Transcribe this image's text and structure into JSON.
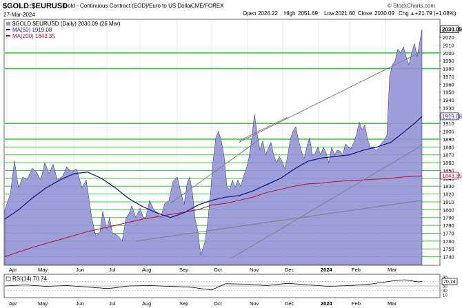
{
  "header": {
    "symbol": "$GOLD:$EURUSD",
    "description": "Gold - Continuous Contract (EOD)/Euro to US Dollar",
    "exchange": "CME/FOREX",
    "date": "27-Mar-2024",
    "watermark": "© StockCharts.com",
    "open_label": "Open",
    "open": "2026.22",
    "high_label": "High",
    "high": "2051.69",
    "low_label": "Low",
    "low": "2021.60",
    "close_label": "Close",
    "close": "2030.09",
    "chg_label": "Chg",
    "chg": "+21.79 (+1.08%)",
    "chg_arrow": "▲"
  },
  "legend": {
    "main": "$GOLD:$EURUSD (Daily) 2030.09 (26 Mar)",
    "ma50": "MA(50) 1919.08",
    "ma200": "MA(200) 1843.35"
  },
  "colors": {
    "area": "#9393d6",
    "area_stroke": "#2d2d7a",
    "ma50": "#1a1a8c",
    "ma200": "#b0103a",
    "hline": "#33cc33",
    "trend": "#808080",
    "rsi": "#000000"
  },
  "price_labels": {
    "last": "2030.09",
    "ma50": "1919.08",
    "ma200": "1843.35"
  },
  "rsi": {
    "label": "RSI(14) 70.74",
    "value_label": "70.74",
    "ticks": [
      "90",
      "70",
      "50",
      "30",
      "10"
    ]
  },
  "chart_data": {
    "type": "area",
    "ylim": [
      1730,
      2042
    ],
    "y_ticks": [
      1740,
      1750,
      1760,
      1770,
      1780,
      1790,
      1800,
      1810,
      1820,
      1830,
      1840,
      1850,
      1860,
      1870,
      1880,
      1890,
      1900,
      1910,
      1920,
      1930,
      1940,
      1950,
      1960,
      1970,
      1980,
      1990,
      2000,
      2010,
      2020
    ],
    "x_labels": [
      "Apr",
      "May",
      "Jun",
      "Jul",
      "Aug",
      "Sep",
      "Oct",
      "Nov",
      "Dec",
      "2024",
      "Feb",
      "Mar"
    ],
    "x_label_pos": [
      3,
      45,
      100,
      148,
      196,
      250,
      300,
      352,
      403,
      455,
      500,
      552
    ],
    "horizontal_lines": [
      1740,
      1750,
      1760,
      1770,
      1780,
      1790,
      1800,
      1810,
      1820,
      1830,
      1840,
      1850,
      1860,
      1870,
      1880,
      1890,
      1910,
      1980,
      2000
    ],
    "price": [
      [
        0,
        1800
      ],
      [
        8,
        1820
      ],
      [
        14,
        1862
      ],
      [
        20,
        1828
      ],
      [
        26,
        1842
      ],
      [
        32,
        1838
      ],
      [
        40,
        1853
      ],
      [
        46,
        1848
      ],
      [
        52,
        1838
      ],
      [
        58,
        1860
      ],
      [
        64,
        1846
      ],
      [
        70,
        1858
      ],
      [
        76,
        1838
      ],
      [
        84,
        1843
      ],
      [
        90,
        1855
      ],
      [
        96,
        1848
      ],
      [
        104,
        1852
      ],
      [
        112,
        1828
      ],
      [
        118,
        1838
      ],
      [
        126,
        1790
      ],
      [
        132,
        1766
      ],
      [
        138,
        1772
      ],
      [
        142,
        1798
      ],
      [
        148,
        1775
      ],
      [
        152,
        1790
      ],
      [
        156,
        1770
      ],
      [
        162,
        1768
      ],
      [
        166,
        1765
      ],
      [
        170,
        1760
      ],
      [
        176,
        1790
      ],
      [
        180,
        1795
      ],
      [
        184,
        1805
      ],
      [
        190,
        1790
      ],
      [
        196,
        1802
      ],
      [
        200,
        1792
      ],
      [
        204,
        1788
      ],
      [
        210,
        1812
      ],
      [
        216,
        1800
      ],
      [
        222,
        1796
      ],
      [
        226,
        1790
      ],
      [
        232,
        1808
      ],
      [
        238,
        1812
      ],
      [
        244,
        1836
      ],
      [
        250,
        1842
      ],
      [
        256,
        1820
      ],
      [
        260,
        1806
      ],
      [
        264,
        1832
      ],
      [
        268,
        1842
      ],
      [
        272,
        1822
      ],
      [
        276,
        1788
      ],
      [
        280,
        1772
      ],
      [
        284,
        1742
      ],
      [
        290,
        1758
      ],
      [
        294,
        1782
      ],
      [
        298,
        1818
      ],
      [
        302,
        1862
      ],
      [
        306,
        1892
      ],
      [
        310,
        1900
      ],
      [
        314,
        1888
      ],
      [
        318,
        1868
      ],
      [
        322,
        1830
      ],
      [
        326,
        1825
      ],
      [
        330,
        1838
      ],
      [
        334,
        1828
      ],
      [
        338,
        1838
      ],
      [
        342,
        1830
      ],
      [
        346,
        1842
      ],
      [
        350,
        1852
      ],
      [
        354,
        1866
      ],
      [
        358,
        1890
      ],
      [
        362,
        1922
      ],
      [
        366,
        1896
      ],
      [
        370,
        1876
      ],
      [
        374,
        1888
      ],
      [
        378,
        1870
      ],
      [
        382,
        1878
      ],
      [
        386,
        1886
      ],
      [
        390,
        1870
      ],
      [
        394,
        1860
      ],
      [
        398,
        1868
      ],
      [
        402,
        1862
      ],
      [
        406,
        1852
      ],
      [
        410,
        1868
      ],
      [
        414,
        1890
      ],
      [
        418,
        1900
      ],
      [
        422,
        1906
      ],
      [
        426,
        1888
      ],
      [
        430,
        1875
      ],
      [
        434,
        1865
      ],
      [
        438,
        1880
      ],
      [
        442,
        1892
      ],
      [
        446,
        1870
      ],
      [
        450,
        1872
      ],
      [
        454,
        1880
      ],
      [
        458,
        1870
      ],
      [
        462,
        1880
      ],
      [
        466,
        1872
      ],
      [
        470,
        1860
      ],
      [
        474,
        1880
      ],
      [
        478,
        1870
      ],
      [
        482,
        1876
      ],
      [
        486,
        1875
      ],
      [
        490,
        1870
      ],
      [
        494,
        1884
      ],
      [
        498,
        1880
      ],
      [
        502,
        1878
      ],
      [
        506,
        1886
      ],
      [
        510,
        1896
      ],
      [
        514,
        1912
      ],
      [
        518,
        1902
      ],
      [
        522,
        1908
      ],
      [
        526,
        1890
      ],
      [
        530,
        1880
      ],
      [
        534,
        1880
      ],
      [
        538,
        1876
      ],
      [
        542,
        1878
      ],
      [
        546,
        1885
      ],
      [
        550,
        1888
      ],
      [
        554,
        1895
      ],
      [
        556,
        1930
      ],
      [
        558,
        1970
      ],
      [
        562,
        1985
      ],
      [
        566,
        1990
      ],
      [
        570,
        2005
      ],
      [
        574,
        2000
      ],
      [
        578,
        2008
      ],
      [
        582,
        1995
      ],
      [
        586,
        1985
      ],
      [
        590,
        2000
      ],
      [
        594,
        2012
      ],
      [
        598,
        1995
      ],
      [
        602,
        2015
      ],
      [
        605,
        2030
      ]
    ],
    "ma50": [
      [
        0,
        1788
      ],
      [
        20,
        1800
      ],
      [
        40,
        1815
      ],
      [
        60,
        1828
      ],
      [
        80,
        1838
      ],
      [
        100,
        1846
      ],
      [
        120,
        1848
      ],
      [
        140,
        1840
      ],
      [
        160,
        1828
      ],
      [
        180,
        1814
      ],
      [
        200,
        1804
      ],
      [
        220,
        1796
      ],
      [
        240,
        1790
      ],
      [
        260,
        1796
      ],
      [
        280,
        1806
      ],
      [
        300,
        1812
      ],
      [
        320,
        1816
      ],
      [
        340,
        1818
      ],
      [
        360,
        1824
      ],
      [
        380,
        1832
      ],
      [
        400,
        1840
      ],
      [
        420,
        1852
      ],
      [
        440,
        1862
      ],
      [
        460,
        1866
      ],
      [
        480,
        1868
      ],
      [
        500,
        1870
      ],
      [
        520,
        1876
      ],
      [
        540,
        1880
      ],
      [
        560,
        1886
      ],
      [
        580,
        1900
      ],
      [
        594,
        1910
      ],
      [
        605,
        1919
      ]
    ],
    "ma200": [
      [
        0,
        1740
      ],
      [
        40,
        1752
      ],
      [
        80,
        1762
      ],
      [
        120,
        1772
      ],
      [
        160,
        1780
      ],
      [
        200,
        1788
      ],
      [
        240,
        1794
      ],
      [
        280,
        1800
      ],
      [
        300,
        1806
      ],
      [
        320,
        1808
      ],
      [
        340,
        1812
      ],
      [
        360,
        1816
      ],
      [
        380,
        1822
      ],
      [
        400,
        1826
      ],
      [
        420,
        1830
      ],
      [
        440,
        1833
      ],
      [
        460,
        1834
      ],
      [
        480,
        1836
      ],
      [
        500,
        1837
      ],
      [
        520,
        1838
      ],
      [
        540,
        1839
      ],
      [
        560,
        1840
      ],
      [
        580,
        1842
      ],
      [
        605,
        1843
      ]
    ],
    "trendlines": [
      [
        [
          240,
          1808
        ],
        [
          370,
          1890
        ]
      ],
      [
        [
          328,
          1738
        ],
        [
          605,
          1882
        ]
      ],
      [
        [
          190,
          1760
        ],
        [
          605,
          1812
        ]
      ],
      [
        [
          340,
          1886
        ],
        [
          605,
          2002
        ]
      ],
      [
        [
          340,
          1888
        ],
        [
          410,
          1918
        ]
      ]
    ],
    "rsi_values": [
      [
        0,
        50
      ],
      [
        30,
        55
      ],
      [
        60,
        48
      ],
      [
        90,
        52
      ],
      [
        120,
        45
      ],
      [
        150,
        38
      ],
      [
        180,
        50
      ],
      [
        210,
        52
      ],
      [
        240,
        48
      ],
      [
        270,
        44
      ],
      [
        300,
        32
      ],
      [
        320,
        60
      ],
      [
        350,
        58
      ],
      [
        380,
        52
      ],
      [
        410,
        62
      ],
      [
        440,
        55
      ],
      [
        470,
        48
      ],
      [
        500,
        52
      ],
      [
        530,
        58
      ],
      [
        560,
        72
      ],
      [
        580,
        78
      ],
      [
        600,
        68
      ],
      [
        605,
        70.74
      ]
    ],
    "rsi_ylim": [
      0,
      100
    ]
  }
}
